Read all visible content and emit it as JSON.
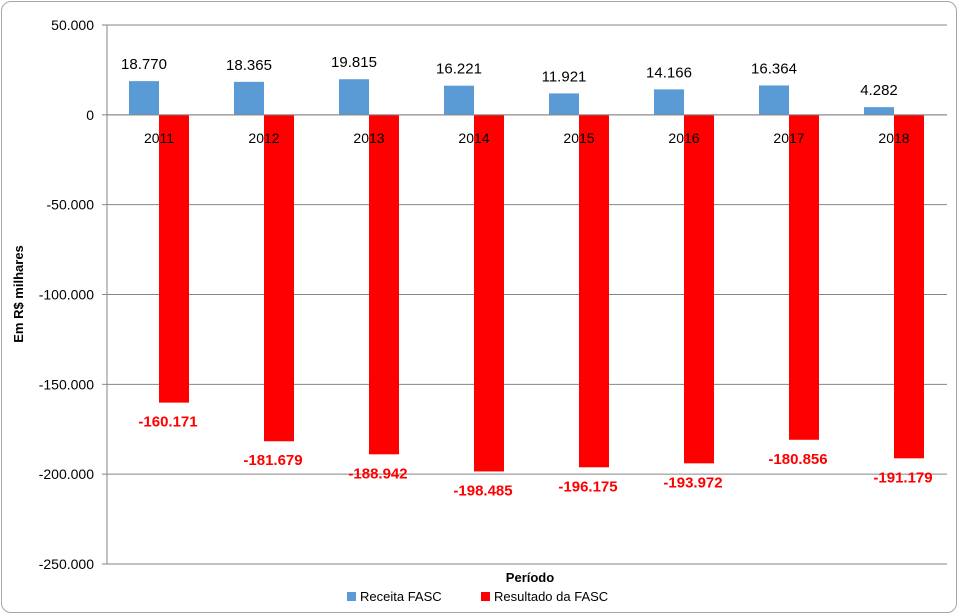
{
  "chart_data": {
    "type": "bar",
    "categories": [
      "2011",
      "2012",
      "2013",
      "2014",
      "2015",
      "2016",
      "2017",
      "2018"
    ],
    "series": [
      {
        "name": "Receita FASC",
        "color": "#5b9bd5",
        "values": [
          18770,
          18365,
          19815,
          16221,
          11921,
          14166,
          16364,
          4282
        ],
        "labels": [
          "18.770",
          "18.365",
          "19.815",
          "16.221",
          "11.921",
          "14.166",
          "16.364",
          "4.282"
        ]
      },
      {
        "name": "Resultado da FASC",
        "color": "#ff0000",
        "values": [
          -160171,
          -181679,
          -188942,
          -198485,
          -196175,
          -193972,
          -180856,
          -191179
        ],
        "labels": [
          "-160.171",
          "-181.679",
          "-188.942",
          "-198.485",
          "-196.175",
          "-193.972",
          "-180.856",
          "-191.179"
        ]
      }
    ],
    "xlabel": "Período",
    "ylabel": "Em R$ milhares",
    "ylim": [
      -250000,
      50000
    ],
    "yticks": [
      50000,
      0,
      -50000,
      -100000,
      -150000,
      -200000,
      -250000
    ],
    "ytick_labels": [
      "50.000",
      "0",
      "-50.000",
      "-100.000",
      "-150.000",
      "-200.000",
      "-250.000"
    ],
    "grid": true,
    "legend_position": "bottom"
  }
}
